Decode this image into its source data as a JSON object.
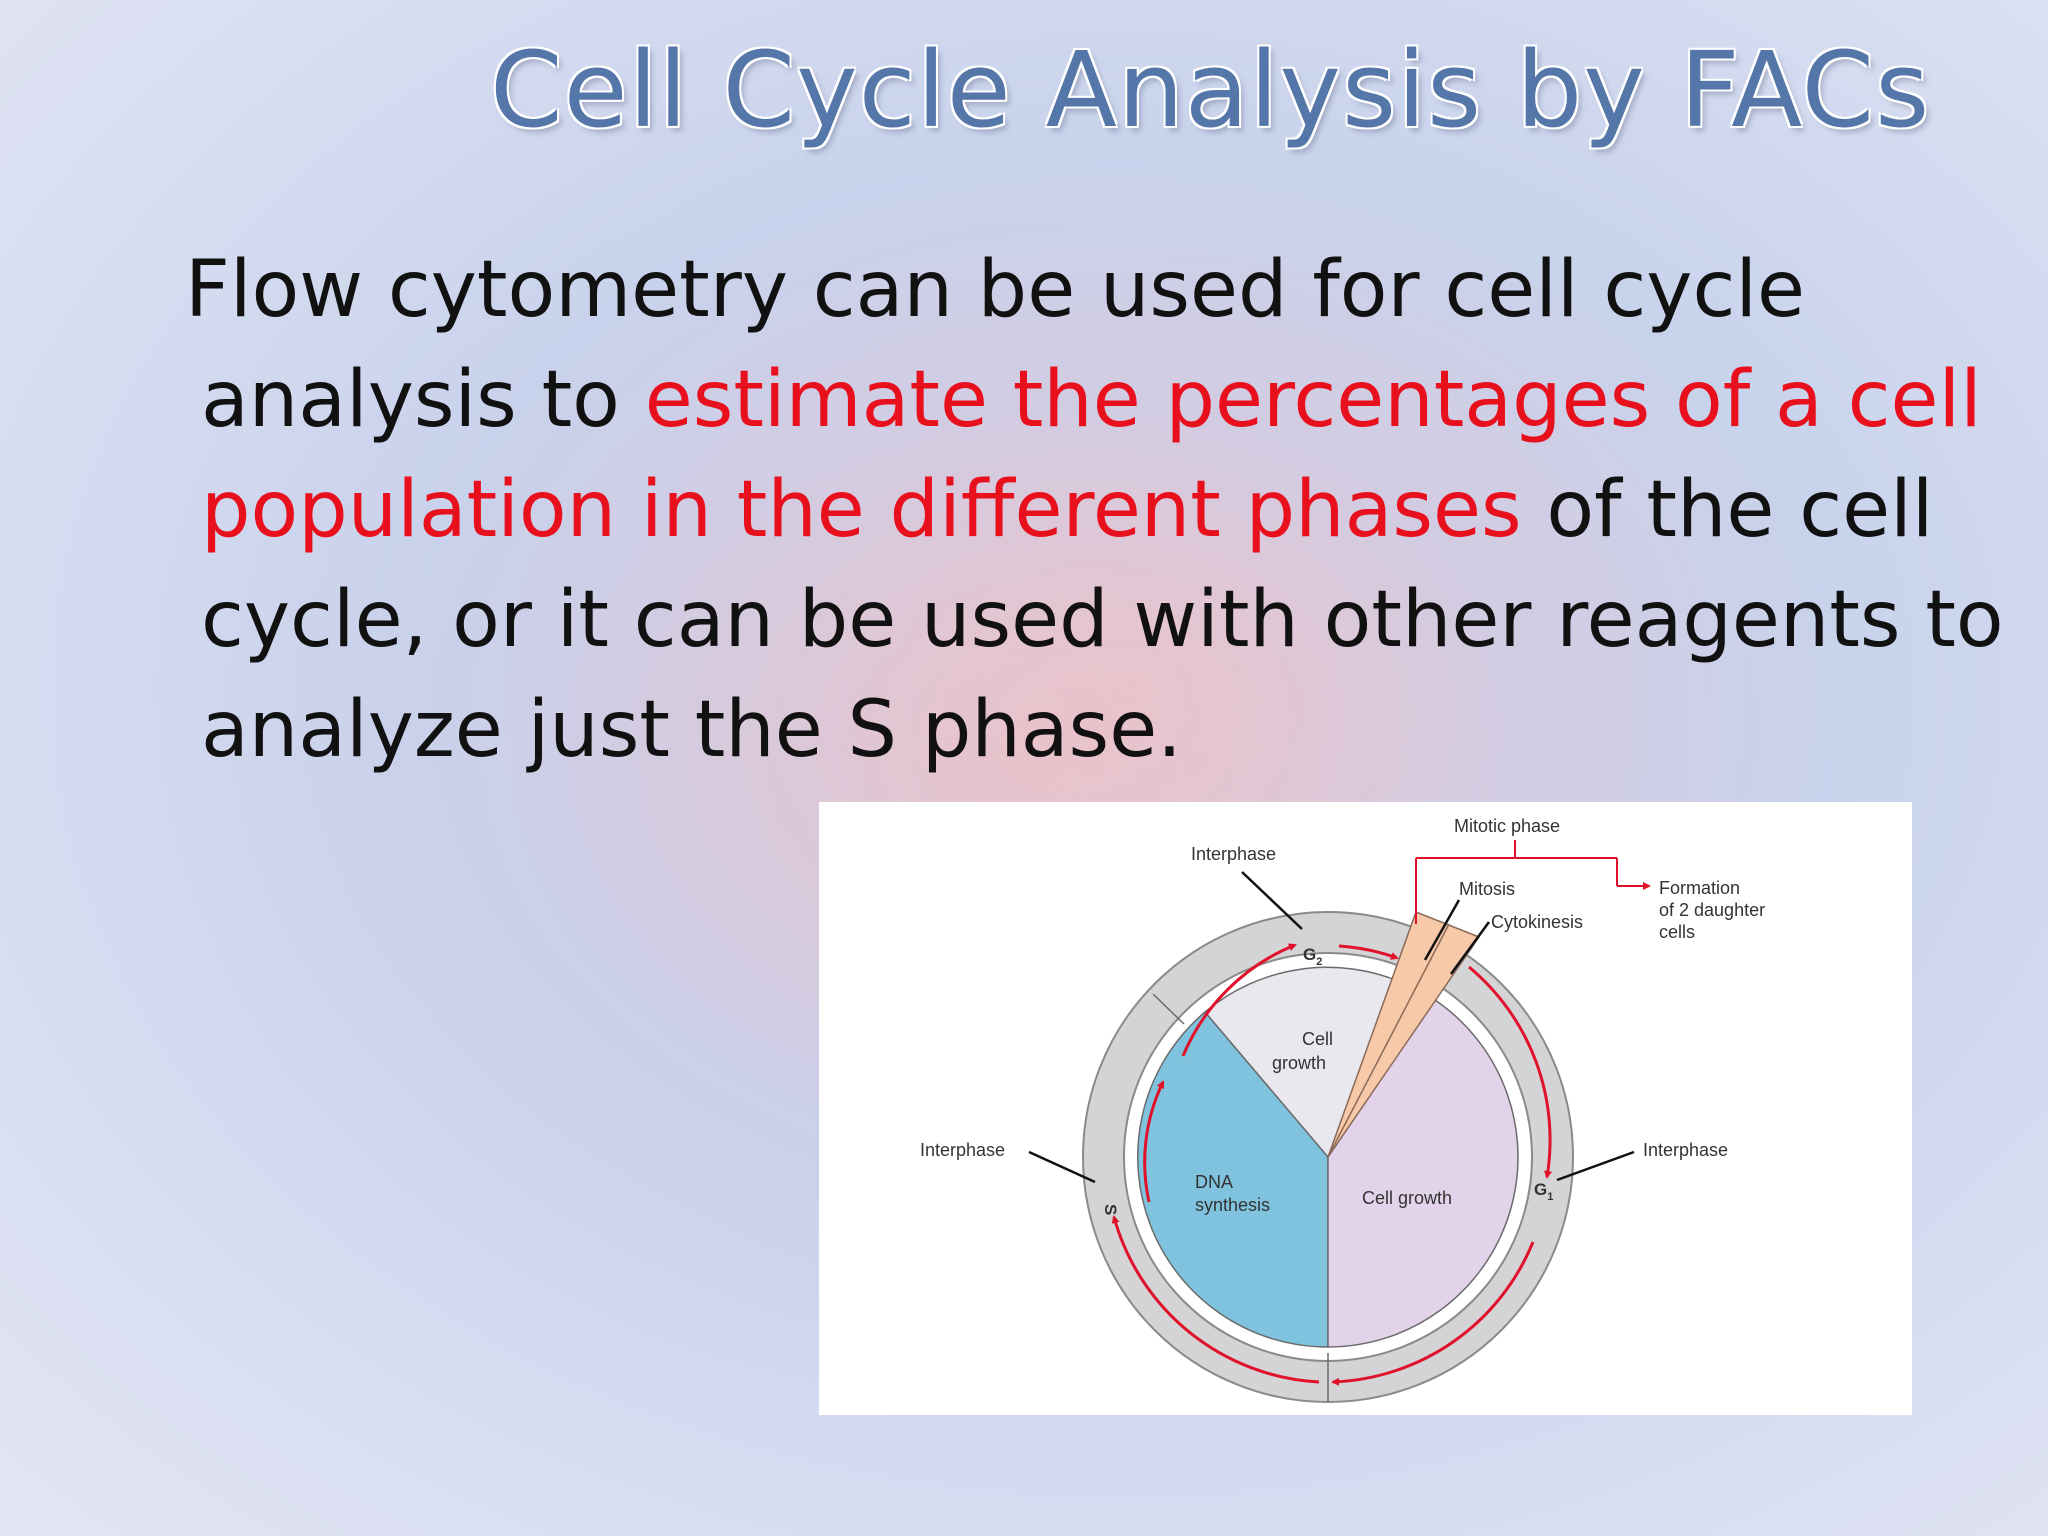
{
  "slide": {
    "title": "Cell Cycle Analysis by FACs",
    "body": {
      "line1": "Flow cytometry can be used for cell cycle",
      "line2_a": "analysis to ",
      "line2_b": "estimate the percentages of a cell",
      "line3_a": "population in the different phases",
      "line3_b": " of the cell",
      "line4": "cycle, or it can be used with other reagents to",
      "line5": "analyze just the S phase."
    }
  },
  "colors": {
    "title": "#5576a8",
    "highlight": "#e8101c",
    "dna_synthesis": "#7fc3df",
    "g1_growth": "#e2d3ea",
    "g2_growth": "#e8e8ee",
    "mitosis": "#f7c9a8",
    "arrows": "#e0112a"
  },
  "diagram": {
    "mitotic_phase": "Mitotic phase",
    "mitosis": "Mitosis",
    "cytokinesis": "Cytokinesis",
    "formation_1": "Formation",
    "formation_2": "of 2 daughter",
    "formation_3": "cells",
    "interphase_top": "Interphase",
    "interphase_left": "Interphase",
    "interphase_right": "Interphase",
    "g2_label": "G",
    "g2_sub": "2",
    "g1_label": "G",
    "g1_sub": "1",
    "s_label": "S",
    "cell_growth_top_1": "Cell",
    "cell_growth_top_2": "growth",
    "dna_1": "DNA",
    "dna_2": "synthesis",
    "cell_growth_right": "Cell growth"
  }
}
